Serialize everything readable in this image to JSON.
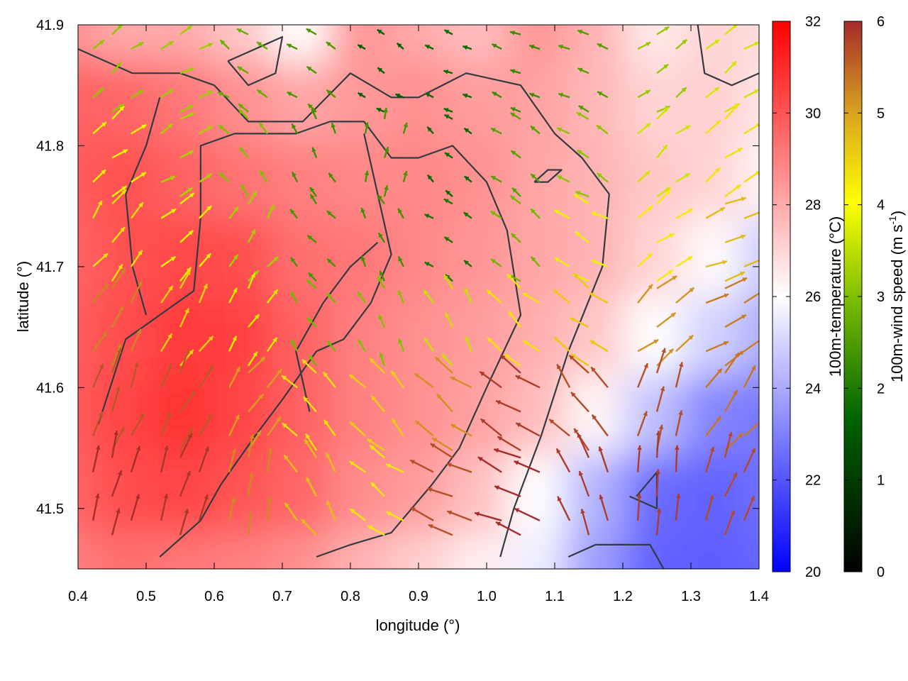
{
  "chart_data": {
    "type": "heatmap",
    "title": "",
    "xlabel": "longitude (°)",
    "ylabel": "latitude (°)",
    "xlim": [
      0.4,
      1.4
    ],
    "ylim": [
      41.45,
      41.9
    ],
    "xticks": [
      0.4,
      0.5,
      0.6,
      0.7,
      0.8,
      0.9,
      1.0,
      1.1,
      1.2,
      1.3,
      1.4
    ],
    "xtick_labels": [
      "0.4",
      "0.5",
      "0.6",
      "0.7",
      "0.8",
      "0.9",
      "1.0",
      "1.1",
      "1.2",
      "1.3",
      "1.4"
    ],
    "yticks": [
      41.5,
      41.6,
      41.7,
      41.8,
      41.9
    ],
    "ytick_labels": [
      "41.5",
      "41.6",
      "41.7",
      "41.8",
      "41.9"
    ],
    "temperature_colorbar": {
      "label": "100m-temperature (°C)",
      "range": [
        20,
        32
      ],
      "ticks": [
        "20",
        "22",
        "24",
        "26",
        "28",
        "30",
        "32"
      ],
      "colors": [
        "#0000ff",
        "#ffffff",
        "#ff0000"
      ]
    },
    "wind_colorbar": {
      "label": "100m-wind speed (m s-1)",
      "label_main": "100m-wind speed (m s",
      "label_sup": "-1",
      "label_end": ")",
      "range": [
        0,
        6
      ],
      "ticks": [
        "0",
        "1",
        "2",
        "3",
        "4",
        "5",
        "6"
      ],
      "colors": [
        "#000000",
        "#006400",
        "#7fbf00",
        "#ffff00",
        "#daa520",
        "#a52a2a"
      ]
    },
    "temperature_field": [
      [
        28.6,
        28.0,
        28.0,
        27.3,
        26.0,
        28.5,
        28.0,
        27.5,
        28.5,
        27.8,
        26.5,
        27.0,
        26.8
      ],
      [
        29.7,
        29.6,
        29.2,
        28.6,
        28.1,
        28.4,
        28.6,
        28.3,
        28.2,
        27.7,
        27.0,
        27.1,
        26.6
      ],
      [
        29.8,
        30.1,
        29.7,
        29.3,
        29.0,
        28.8,
        28.8,
        28.6,
        28.1,
        27.8,
        27.3,
        27.0,
        26.2
      ],
      [
        29.6,
        30.1,
        30.3,
        30.2,
        29.4,
        29.2,
        28.8,
        28.5,
        28.1,
        27.8,
        27.0,
        26.1,
        24.7
      ],
      [
        29.8,
        30.2,
        30.6,
        30.5,
        29.7,
        29.0,
        28.6,
        28.3,
        27.9,
        27.3,
        26.0,
        24.9,
        24.0
      ],
      [
        29.8,
        30.4,
        30.8,
        30.4,
        29.7,
        29.0,
        28.6,
        28.2,
        27.6,
        26.2,
        24.5,
        23.1,
        22.8
      ],
      [
        29.6,
        30.2,
        30.4,
        30.0,
        29.6,
        28.7,
        28.3,
        27.5,
        26.0,
        24.2,
        22.5,
        22.3,
        22.6
      ],
      [
        29.0,
        29.4,
        29.2,
        29.0,
        28.6,
        27.8,
        27.1,
        26.4,
        25.6,
        23.7,
        22.3,
        22.2,
        22.4
      ]
    ],
    "wind_vectors": [
      {
        "lon": 0.45,
        "lat": 41.86,
        "u": 2.0,
        "v": 1.6
      },
      {
        "lon": 0.55,
        "lat": 41.86,
        "u": 2.4,
        "v": 1.2
      },
      {
        "lon": 0.65,
        "lat": 41.86,
        "u": -1.8,
        "v": 1.2
      },
      {
        "lon": 0.75,
        "lat": 41.86,
        "u": -1.6,
        "v": 1.0
      },
      {
        "lon": 0.85,
        "lat": 41.86,
        "u": -1.0,
        "v": 0.6
      },
      {
        "lon": 0.95,
        "lat": 41.86,
        "u": -1.2,
        "v": 0.5
      },
      {
        "lon": 1.05,
        "lat": 41.86,
        "u": -1.6,
        "v": 0.6
      },
      {
        "lon": 1.15,
        "lat": 41.86,
        "u": -1.8,
        "v": 0.8
      },
      {
        "lon": 1.25,
        "lat": 41.86,
        "u": 2.2,
        "v": 1.4
      },
      {
        "lon": 1.35,
        "lat": 41.86,
        "u": 2.6,
        "v": 1.8
      },
      {
        "lon": 0.45,
        "lat": 41.79,
        "u": 2.8,
        "v": 2.0
      },
      {
        "lon": 0.55,
        "lat": 41.79,
        "u": 2.4,
        "v": 1.4
      },
      {
        "lon": 0.65,
        "lat": 41.79,
        "u": -1.6,
        "v": 1.8
      },
      {
        "lon": 0.75,
        "lat": 41.79,
        "u": -0.8,
        "v": 1.6
      },
      {
        "lon": 0.85,
        "lat": 41.79,
        "u": 0.4,
        "v": 1.8
      },
      {
        "lon": 0.95,
        "lat": 41.79,
        "u": -1.0,
        "v": 0.8
      },
      {
        "lon": 1.05,
        "lat": 41.79,
        "u": -1.6,
        "v": 1.2
      },
      {
        "lon": 1.15,
        "lat": 41.79,
        "u": -2.2,
        "v": 1.2
      },
      {
        "lon": 1.25,
        "lat": 41.79,
        "u": 2.4,
        "v": 2.0
      },
      {
        "lon": 1.35,
        "lat": 41.79,
        "u": 3.2,
        "v": 2.4
      },
      {
        "lon": 0.45,
        "lat": 41.72,
        "u": 2.4,
        "v": 3.2
      },
      {
        "lon": 0.55,
        "lat": 41.72,
        "u": 2.6,
        "v": 2.2
      },
      {
        "lon": 0.65,
        "lat": 41.72,
        "u": 1.6,
        "v": 2.2
      },
      {
        "lon": 0.75,
        "lat": 41.72,
        "u": -1.2,
        "v": 1.4
      },
      {
        "lon": 0.85,
        "lat": 41.72,
        "u": -0.8,
        "v": 1.6
      },
      {
        "lon": 0.95,
        "lat": 41.72,
        "u": -1.2,
        "v": 0.8
      },
      {
        "lon": 1.05,
        "lat": 41.72,
        "u": -1.8,
        "v": 1.4
      },
      {
        "lon": 1.15,
        "lat": 41.72,
        "u": -3.0,
        "v": 1.6
      },
      {
        "lon": 1.25,
        "lat": 41.72,
        "u": 3.2,
        "v": 2.2
      },
      {
        "lon": 1.35,
        "lat": 41.72,
        "u": 4.2,
        "v": 1.6
      },
      {
        "lon": 0.45,
        "lat": 41.65,
        "u": 2.6,
        "v": 4.4
      },
      {
        "lon": 0.55,
        "lat": 41.65,
        "u": 2.2,
        "v": 3.6
      },
      {
        "lon": 0.65,
        "lat": 41.65,
        "u": 1.6,
        "v": 2.8
      },
      {
        "lon": 0.75,
        "lat": 41.65,
        "u": -1.4,
        "v": 1.8
      },
      {
        "lon": 0.85,
        "lat": 41.65,
        "u": -1.0,
        "v": 2.2
      },
      {
        "lon": 0.95,
        "lat": 41.65,
        "u": -1.6,
        "v": 2.6
      },
      {
        "lon": 1.05,
        "lat": 41.65,
        "u": -3.0,
        "v": 2.6
      },
      {
        "lon": 1.15,
        "lat": 41.65,
        "u": -3.6,
        "v": 2.4
      },
      {
        "lon": 1.25,
        "lat": 41.65,
        "u": 3.8,
        "v": 3.2
      },
      {
        "lon": 1.35,
        "lat": 41.65,
        "u": 4.6,
        "v": 2.4
      },
      {
        "lon": 0.45,
        "lat": 41.58,
        "u": 2.0,
        "v": 5.2
      },
      {
        "lon": 0.55,
        "lat": 41.58,
        "u": 2.4,
        "v": 5.0
      },
      {
        "lon": 0.65,
        "lat": 41.58,
        "u": 2.8,
        "v": 4.0
      },
      {
        "lon": 0.75,
        "lat": 41.58,
        "u": -2.6,
        "v": 3.0
      },
      {
        "lon": 0.85,
        "lat": 41.58,
        "u": -3.0,
        "v": 3.0
      },
      {
        "lon": 0.95,
        "lat": 41.58,
        "u": -4.0,
        "v": 3.0
      },
      {
        "lon": 1.05,
        "lat": 41.58,
        "u": -5.0,
        "v": 3.0
      },
      {
        "lon": 1.15,
        "lat": 41.58,
        "u": -3.6,
        "v": 4.4
      },
      {
        "lon": 1.25,
        "lat": 41.58,
        "u": 1.6,
        "v": 5.4
      },
      {
        "lon": 1.35,
        "lat": 41.58,
        "u": 3.2,
        "v": 4.2
      },
      {
        "lon": 0.45,
        "lat": 41.51,
        "u": 1.4,
        "v": 5.8
      },
      {
        "lon": 0.55,
        "lat": 41.51,
        "u": 1.8,
        "v": 5.6
      },
      {
        "lon": 0.65,
        "lat": 41.51,
        "u": 0.8,
        "v": 5.0
      },
      {
        "lon": 0.75,
        "lat": 41.51,
        "u": -2.4,
        "v": 3.8
      },
      {
        "lon": 0.85,
        "lat": 41.51,
        "u": -3.2,
        "v": 2.2
      },
      {
        "lon": 0.95,
        "lat": 41.51,
        "u": -5.2,
        "v": 2.2
      },
      {
        "lon": 1.05,
        "lat": 41.51,
        "u": -5.6,
        "v": 2.4
      },
      {
        "lon": 1.15,
        "lat": 41.51,
        "u": -2.2,
        "v": 5.4
      },
      {
        "lon": 1.25,
        "lat": 41.51,
        "u": 0.4,
        "v": 5.8
      },
      {
        "lon": 1.35,
        "lat": 41.51,
        "u": 1.8,
        "v": 5.4
      }
    ],
    "contours": [
      [
        [
          0.4,
          41.88
        ],
        [
          0.48,
          41.86
        ],
        [
          0.55,
          41.86
        ],
        [
          0.6,
          41.85
        ],
        [
          0.65,
          41.82
        ],
        [
          0.73,
          41.82
        ],
        [
          0.8,
          41.86
        ],
        [
          0.86,
          41.84
        ],
        [
          0.9,
          41.84
        ],
        [
          0.97,
          41.86
        ],
        [
          1.05,
          41.85
        ],
        [
          1.1,
          41.81
        ],
        [
          1.14,
          41.79
        ],
        [
          1.18,
          41.76
        ],
        [
          1.17,
          41.7
        ],
        [
          1.12,
          41.63
        ],
        [
          1.08,
          41.56
        ],
        [
          1.04,
          41.5
        ],
        [
          1.02,
          41.46
        ]
      ],
      [
        [
          0.43,
          41.57
        ],
        [
          0.47,
          41.64
        ],
        [
          0.52,
          41.66
        ],
        [
          0.57,
          41.68
        ],
        [
          0.58,
          41.74
        ],
        [
          0.58,
          41.8
        ],
        [
          0.63,
          41.81
        ],
        [
          0.68,
          41.81
        ],
        [
          0.72,
          41.81
        ],
        [
          0.77,
          41.82
        ],
        [
          0.82,
          41.82
        ],
        [
          0.86,
          41.79
        ],
        [
          0.9,
          41.79
        ],
        [
          0.95,
          41.8
        ],
        [
          1.0,
          41.77
        ],
        [
          1.03,
          41.73
        ],
        [
          1.05,
          41.66
        ],
        [
          1.0,
          41.6
        ],
        [
          0.96,
          41.55
        ],
        [
          0.92,
          41.52
        ],
        [
          0.86,
          41.48
        ],
        [
          0.8,
          41.47
        ],
        [
          0.75,
          41.46
        ]
      ],
      [
        [
          0.52,
          41.46
        ],
        [
          0.58,
          41.49
        ],
        [
          0.61,
          41.52
        ],
        [
          0.66,
          41.56
        ],
        [
          0.7,
          41.59
        ],
        [
          0.75,
          41.63
        ],
        [
          0.79,
          41.64
        ],
        [
          0.83,
          41.67
        ],
        [
          0.86,
          41.71
        ],
        [
          0.84,
          41.76
        ],
        [
          0.82,
          41.81
        ]
      ],
      [
        [
          0.5,
          41.66
        ],
        [
          0.48,
          41.7
        ],
        [
          0.47,
          41.76
        ],
        [
          0.5,
          41.8
        ],
        [
          0.52,
          41.84
        ]
      ],
      [
        [
          0.74,
          41.58
        ],
        [
          0.72,
          41.63
        ],
        [
          0.76,
          41.67
        ],
        [
          0.8,
          41.7
        ],
        [
          0.84,
          41.72
        ]
      ],
      [
        [
          1.19,
          41.47
        ],
        [
          1.24,
          41.47
        ],
        [
          1.26,
          41.45
        ]
      ],
      [
        [
          1.21,
          41.51
        ],
        [
          1.25,
          41.5
        ],
        [
          1.25,
          41.53
        ],
        [
          1.22,
          41.51
        ]
      ],
      [
        [
          0.62,
          41.87
        ],
        [
          0.66,
          41.88
        ],
        [
          0.7,
          41.89
        ],
        [
          0.69,
          41.86
        ],
        [
          0.65,
          41.85
        ],
        [
          0.62,
          41.87
        ]
      ],
      [
        [
          1.31,
          41.9
        ],
        [
          1.32,
          41.86
        ],
        [
          1.36,
          41.85
        ],
        [
          1.4,
          41.86
        ]
      ],
      [
        [
          1.07,
          41.77
        ],
        [
          1.09,
          41.78
        ],
        [
          1.11,
          41.78
        ],
        [
          1.09,
          41.77
        ],
        [
          1.07,
          41.77
        ]
      ],
      [
        [
          1.12,
          41.46
        ],
        [
          1.16,
          41.47
        ],
        [
          1.2,
          41.47
        ]
      ]
    ],
    "grid": false,
    "legend": "none"
  }
}
